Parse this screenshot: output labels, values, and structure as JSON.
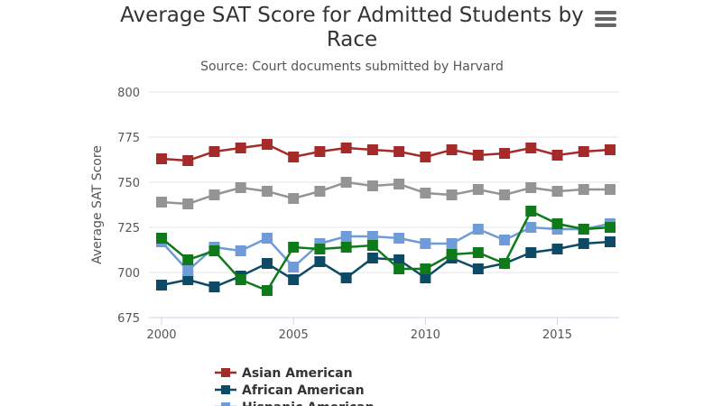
{
  "chart_data": {
    "type": "line",
    "title": "Average SAT Score for Admitted Students by Race",
    "subtitle": "Source: Court documents submitted by Harvard",
    "xlabel": "",
    "ylabel": "Average SAT Score",
    "xlim": [
      2000,
      2017
    ],
    "ylim": [
      675,
      800
    ],
    "xticks": [
      "2000",
      "2005",
      "2010",
      "2015"
    ],
    "yticks": [
      "675",
      "700",
      "725",
      "750",
      "775",
      "800"
    ],
    "grid": true,
    "legend_position": "bottom",
    "x": [
      2000,
      2001,
      2002,
      2003,
      2004,
      2005,
      2006,
      2007,
      2008,
      2009,
      2010,
      2011,
      2012,
      2013,
      2014,
      2015,
      2016,
      2017
    ],
    "series": [
      {
        "name": "Asian American",
        "color": "#a52a2a",
        "values": [
          763,
          762,
          767,
          769,
          771,
          764,
          767,
          769,
          768,
          767,
          764,
          768,
          765,
          766,
          769,
          765,
          767,
          768
        ]
      },
      {
        "name": "African American",
        "color": "#0d4a66",
        "values": [
          693,
          696,
          692,
          698,
          705,
          696,
          706,
          697,
          708,
          707,
          697,
          708,
          702,
          705,
          711,
          713,
          716,
          717
        ]
      },
      {
        "name": "Hispanic American",
        "color": "#6f9bd8",
        "values": [
          717,
          701,
          714,
          712,
          719,
          703,
          716,
          720,
          720,
          719,
          716,
          716,
          724,
          718,
          725,
          724,
          724,
          727
        ]
      },
      {
        "color": "#949494",
        "values": [
          739,
          738,
          743,
          747,
          745,
          741,
          745,
          750,
          748,
          749,
          744,
          743,
          746,
          743,
          747,
          745,
          746,
          746
        ]
      },
      {
        "color": "#0f7a1a",
        "values": [
          719,
          707,
          712,
          696,
          690,
          714,
          713,
          714,
          715,
          702,
          702,
          710,
          711,
          705,
          734,
          727,
          724,
          725
        ]
      }
    ]
  },
  "menu_icon": "hamburger-menu-icon"
}
